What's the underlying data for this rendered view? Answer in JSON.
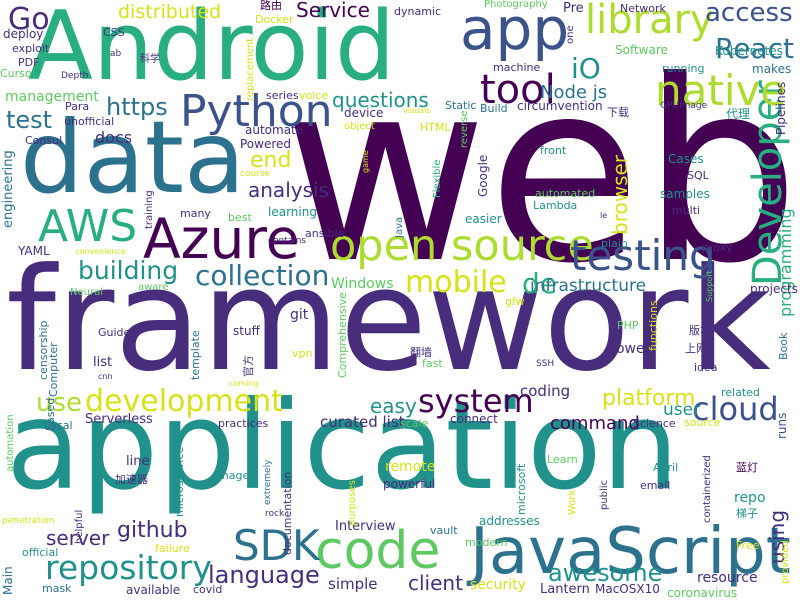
{
  "palette": {
    "background": "#ffffff",
    "dark_purple": "#440154",
    "purple": "#472d7b",
    "indigo": "#3b528b",
    "blue": "#2c728e",
    "teal": "#21918c",
    "green": "#28ae80",
    "light_green": "#5ec962",
    "lime": "#addc30",
    "yellow": "#d8e219"
  },
  "words": [
    {
      "text": "web",
      "color": "#440154"
    },
    {
      "text": "framework",
      "color": "#472d7b"
    },
    {
      "text": "application",
      "color": "#21918c"
    },
    {
      "text": "Android",
      "color": "#28ae80"
    },
    {
      "text": "data",
      "color": "#2c728e"
    },
    {
      "text": "JavaScript",
      "color": "#2c728e"
    },
    {
      "text": "open source",
      "color": "#addc30"
    },
    {
      "text": "Azure",
      "color": "#440154"
    },
    {
      "text": "app",
      "color": "#3b528b"
    },
    {
      "text": "code",
      "color": "#5ec962"
    },
    {
      "text": "testing",
      "color": "#3b528b"
    },
    {
      "text": "Python",
      "color": "#3b528b"
    },
    {
      "text": "AWS",
      "color": "#28ae80"
    },
    {
      "text": "Developer",
      "color": "#28ae80"
    },
    {
      "text": "native",
      "color": "#addc30"
    },
    {
      "text": "library",
      "color": "#addc30"
    },
    {
      "text": "tool",
      "color": "#440154"
    },
    {
      "text": "repository",
      "color": "#21918c"
    },
    {
      "text": "SDK",
      "color": "#2c728e"
    },
    {
      "text": "mobile",
      "color": "#d8e219"
    },
    {
      "text": "collection",
      "color": "#2c728e"
    },
    {
      "text": "development",
      "color": "#d8e219"
    },
    {
      "text": "system",
      "color": "#440154"
    },
    {
      "text": "cloud",
      "color": "#3b528b"
    },
    {
      "text": "awesome",
      "color": "#21918c"
    },
    {
      "text": "Go",
      "color": "#472d7b"
    },
    {
      "text": "React",
      "color": "#2c728e"
    },
    {
      "text": "access",
      "color": "#3b528b"
    },
    {
      "text": "building",
      "color": "#21918c"
    },
    {
      "text": "language",
      "color": "#472d7b"
    },
    {
      "text": "de",
      "color": "#28ae80"
    },
    {
      "text": "https",
      "color": "#2c728e"
    },
    {
      "text": "iO",
      "color": "#21918c"
    },
    {
      "text": "test",
      "color": "#2c728e"
    },
    {
      "text": "end",
      "color": "#d8e219"
    },
    {
      "text": "analysis",
      "color": "#472d7b"
    },
    {
      "text": "use",
      "color": "#addc30"
    },
    {
      "text": "github",
      "color": "#472d7b"
    },
    {
      "text": "server",
      "color": "#472d7b"
    },
    {
      "text": "client",
      "color": "#472d7b"
    },
    {
      "text": "platform",
      "color": "#d8e219"
    },
    {
      "text": "questions",
      "color": "#21918c"
    },
    {
      "text": "infrastructure",
      "color": "#2c728e"
    },
    {
      "text": "Node js",
      "color": "#2c728e"
    },
    {
      "text": "browser",
      "color": "#d8e219"
    },
    {
      "text": "using",
      "color": "#472d7b"
    },
    {
      "text": "Service",
      "color": "#440154"
    },
    {
      "text": "distributed",
      "color": "#d8e219"
    },
    {
      "text": "easy",
      "color": "#21918c"
    },
    {
      "text": "command",
      "color": "#440154"
    },
    {
      "text": "user",
      "color": "#21918c"
    },
    {
      "text": "docs",
      "color": "#472d7b"
    },
    {
      "text": "Windows",
      "color": "#5ec962"
    },
    {
      "text": "coding",
      "color": "#472d7b"
    },
    {
      "text": "curated list",
      "color": "#472d7b"
    },
    {
      "text": "simple",
      "color": "#472d7b"
    },
    {
      "text": "security",
      "color": "#d8e219"
    },
    {
      "text": "remote",
      "color": "#d8e219"
    },
    {
      "text": "Lantern",
      "color": "#472d7b"
    },
    {
      "text": "MacOSX10",
      "color": "#472d7b"
    },
    {
      "text": "coronavirus",
      "color": "#5ec962"
    },
    {
      "text": "resource",
      "color": "#472d7b"
    },
    {
      "text": "repo",
      "color": "#21918c"
    },
    {
      "text": "programming",
      "color": "#28ae80"
    },
    {
      "text": "projects",
      "color": "#472d7b"
    },
    {
      "text": "Book",
      "color": "#2c728e"
    },
    {
      "text": "runs",
      "color": "#3b528b"
    },
    {
      "text": "Pipelines",
      "color": "#472d7b"
    },
    {
      "text": "代理",
      "color": "#21918c"
    },
    {
      "text": "Kubernetes",
      "color": "#21918c"
    },
    {
      "text": "makes",
      "color": "#2c728e"
    },
    {
      "text": "running",
      "color": "#21918c"
    },
    {
      "text": "Network",
      "color": "#472d7b"
    },
    {
      "text": "Software",
      "color": "#5ec962"
    },
    {
      "text": "Pre",
      "color": "#472d7b"
    },
    {
      "text": "dynamic",
      "color": "#472d7b"
    },
    {
      "text": "Photography",
      "color": "#5ec962"
    },
    {
      "text": "路由",
      "color": "#440154"
    },
    {
      "text": "Docker",
      "color": "#d8e219"
    },
    {
      "text": "CSS",
      "color": "#472d7b"
    },
    {
      "text": "deploy",
      "color": "#472d7b"
    },
    {
      "text": "exploit",
      "color": "#472d7b"
    },
    {
      "text": "PDF",
      "color": "#472d7b"
    },
    {
      "text": "Curso",
      "color": "#5ec962"
    },
    {
      "text": "management",
      "color": "#5ec962"
    },
    {
      "text": "Para",
      "color": "#472d7b"
    },
    {
      "text": "unofficial",
      "color": "#472d7b"
    },
    {
      "text": "Consul",
      "color": "#472d7b"
    },
    {
      "text": "engineering",
      "color": "#2c728e"
    },
    {
      "text": "series",
      "color": "#472d7b"
    },
    {
      "text": "voice",
      "color": "#d8e219"
    },
    {
      "text": "Powered",
      "color": "#472d7b"
    },
    {
      "text": "automate",
      "color": "#472d7b"
    },
    {
      "text": "device",
      "color": "#472d7b"
    },
    {
      "text": "object",
      "color": "#d8e219"
    },
    {
      "text": "HTML",
      "color": "#d8e219"
    },
    {
      "text": "Static",
      "color": "#2c728e"
    },
    {
      "text": "Build",
      "color": "#2c728e"
    },
    {
      "text": "circumvention",
      "color": "#472d7b"
    },
    {
      "text": "下载",
      "color": "#472d7b"
    },
    {
      "text": "GPUImage",
      "color": "#472d7b"
    },
    {
      "text": "machine",
      "color": "#472d7b"
    },
    {
      "text": "Google",
      "color": "#472d7b"
    },
    {
      "text": "front",
      "color": "#21918c"
    },
    {
      "text": "SQL",
      "color": "#472d7b"
    },
    {
      "text": "samples",
      "color": "#21918c"
    },
    {
      "text": "multi",
      "color": "#472d7b"
    },
    {
      "text": "Cases",
      "color": "#21918c"
    },
    {
      "text": "automated",
      "color": "#5ec962"
    },
    {
      "text": "Lambda",
      "color": "#21918c"
    },
    {
      "text": "easier",
      "color": "#21918c"
    },
    {
      "text": "ansible",
      "color": "#472d7b"
    },
    {
      "text": "learning",
      "color": "#21918c"
    },
    {
      "text": "many",
      "color": "#472d7b"
    },
    {
      "text": "best",
      "color": "#5ec962"
    },
    {
      "text": "training",
      "color": "#472d7b"
    },
    {
      "text": "YAML",
      "color": "#472d7b"
    },
    {
      "text": "convenience",
      "color": "#d8e219"
    },
    {
      "text": "Neural",
      "color": "#5ec962"
    },
    {
      "text": "aware",
      "color": "#5ec962"
    },
    {
      "text": "contains",
      "color": "#472d7b"
    },
    {
      "text": "Java",
      "color": "#2c728e"
    },
    {
      "text": "Flexible",
      "color": "#28ae80"
    },
    {
      "text": "plain",
      "color": "#21918c"
    },
    {
      "text": "proxy",
      "color": "#472d7b"
    },
    {
      "text": "gfw",
      "color": "#d8e219"
    },
    {
      "text": "Support",
      "color": "#5ec962"
    },
    {
      "text": "Guide",
      "color": "#472d7b"
    },
    {
      "text": "stuff",
      "color": "#472d7b"
    },
    {
      "text": "git",
      "color": "#472d7b"
    },
    {
      "text": "vpn",
      "color": "#d8e219"
    },
    {
      "text": "Comprehensive",
      "color": "#5ec962"
    },
    {
      "text": "PHP",
      "color": "#5ec962"
    },
    {
      "text": "functions",
      "color": "#d8e219"
    },
    {
      "text": "版本",
      "color": "#472d7b"
    },
    {
      "text": "上网",
      "color": "#472d7b"
    },
    {
      "text": "idea",
      "color": "#472d7b"
    },
    {
      "text": "Power",
      "color": "#472d7b"
    },
    {
      "text": "翻墙",
      "color": "#472d7b"
    },
    {
      "text": "fast",
      "color": "#5ec962"
    },
    {
      "text": "SSH",
      "color": "#472d7b"
    },
    {
      "text": "官方",
      "color": "#472d7b"
    },
    {
      "text": "coming",
      "color": "#d8e219"
    },
    {
      "text": "template",
      "color": "#2c728e"
    },
    {
      "text": "list",
      "color": "#472d7b"
    },
    {
      "text": "cnn",
      "color": "#472d7b"
    },
    {
      "text": "Computer",
      "color": "#2c728e"
    },
    {
      "text": "censorship",
      "color": "#2c728e"
    },
    {
      "text": "based",
      "color": "#2c728e"
    },
    {
      "text": "Main",
      "color": "#2c728e"
    },
    {
      "text": "Local",
      "color": "#2c728e"
    },
    {
      "text": "automation",
      "color": "#5ec962"
    },
    {
      "text": "Serverless",
      "color": "#472d7b"
    },
    {
      "text": "practices",
      "color": "#472d7b"
    },
    {
      "text": "line",
      "color": "#472d7b"
    },
    {
      "text": "加速器",
      "color": "#472d7b"
    },
    {
      "text": "microservice",
      "color": "#21918c"
    },
    {
      "text": "image",
      "color": "#21918c"
    },
    {
      "text": "extremely",
      "color": "#2c728e"
    },
    {
      "text": "rock",
      "color": "#472d7b"
    },
    {
      "text": "documentation",
      "color": "#472d7b"
    },
    {
      "text": "Interview",
      "color": "#472d7b"
    },
    {
      "text": "purposes",
      "color": "#d8e219"
    },
    {
      "text": "powerful",
      "color": "#472d7b"
    },
    {
      "text": "vault",
      "color": "#2c728e"
    },
    {
      "text": "addresses",
      "color": "#21918c"
    },
    {
      "text": "microsoft",
      "color": "#21918c"
    },
    {
      "text": "Work",
      "color": "#d8e219"
    },
    {
      "text": "Learn",
      "color": "#5ec962"
    },
    {
      "text": "public",
      "color": "#472d7b"
    },
    {
      "text": "email",
      "color": "#472d7b"
    },
    {
      "text": "April",
      "color": "#21918c"
    },
    {
      "text": "containerized",
      "color": "#472d7b"
    },
    {
      "text": "蓝灯",
      "color": "#440154"
    },
    {
      "text": "梯子",
      "color": "#21918c"
    },
    {
      "text": "Free",
      "color": "#d8e219"
    },
    {
      "text": "provided",
      "color": "#d8e219"
    },
    {
      "text": "related",
      "color": "#21918c"
    },
    {
      "text": "source",
      "color": "#d8e219"
    },
    {
      "text": "Science",
      "color": "#472d7b"
    },
    {
      "text": "connect",
      "color": "#472d7b"
    },
    {
      "text": "scale",
      "color": "#5ec962"
    },
    {
      "text": "failure",
      "color": "#d8e219"
    },
    {
      "text": "official",
      "color": "#21918c"
    },
    {
      "text": "helpful",
      "color": "#472d7b"
    },
    {
      "text": "penetration",
      "color": "#d8e219"
    },
    {
      "text": "mask",
      "color": "#2c728e"
    },
    {
      "text": "available",
      "color": "#472d7b"
    },
    {
      "text": "covid",
      "color": "#472d7b"
    },
    {
      "text": "modern",
      "color": "#5ec962"
    },
    {
      "text": "ab",
      "color": "#472d7b"
    },
    {
      "text": "科学",
      "color": "#472d7b"
    },
    {
      "text": "Depth",
      "color": "#472d7b"
    },
    {
      "text": "replacement",
      "color": "#d8e219"
    },
    {
      "text": "game",
      "color": "#d8e219"
    },
    {
      "text": "course",
      "color": "#d8e219"
    },
    {
      "text": "visuals",
      "color": "#d8e219"
    },
    {
      "text": "reverse",
      "color": "#5ec962"
    },
    {
      "text": "one",
      "color": "#472d7b"
    },
    {
      "text": "le",
      "color": "#472d7b"
    }
  ]
}
